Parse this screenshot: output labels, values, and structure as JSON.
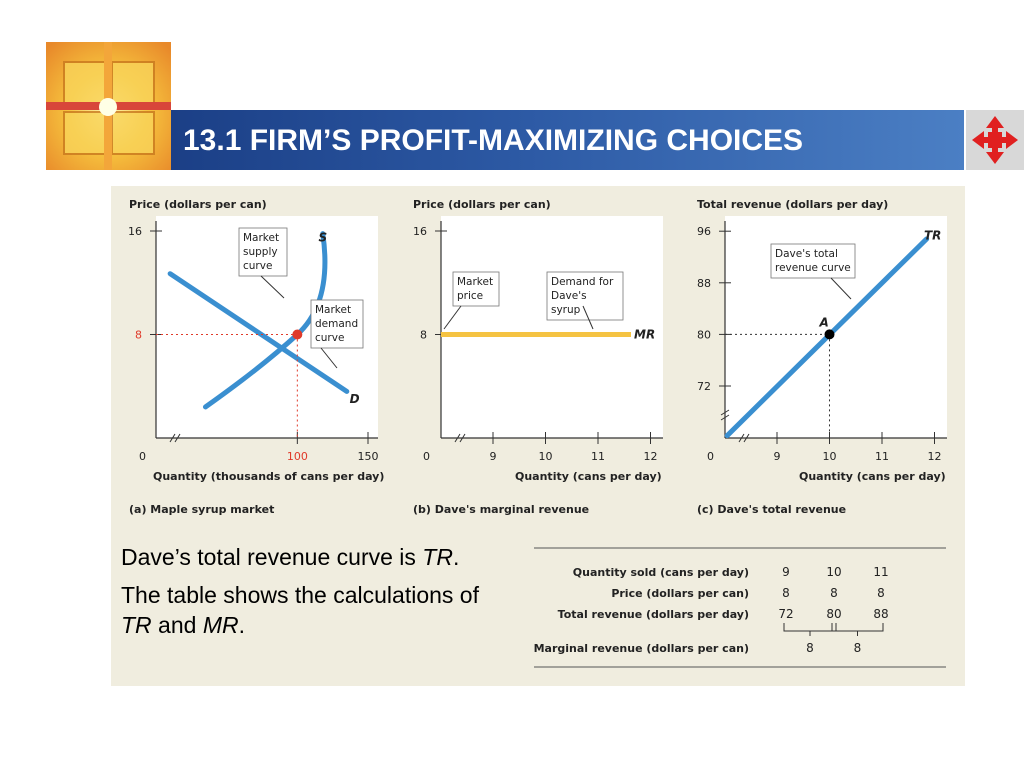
{
  "slide": {
    "title": "13.1 FIRM’S PROFIT-MAXIMIZING CHOICES",
    "notes": {
      "line1_text": "Dave’s total revenue curve is ",
      "line1_italic": "TR",
      "line1_end": ".",
      "line2_text": "The table shows the calculations of ",
      "line2_italic1": "TR",
      "line2_mid": " and ",
      "line2_italic2": "MR",
      "line2_end": "."
    }
  },
  "colors": {
    "curve": "#3a8fd0",
    "mr_line": "#f5c342",
    "red": "#e03a2a",
    "panel": "#f0eddf",
    "title_bar": "#2b579f"
  },
  "chart_data": [
    {
      "type": "line",
      "id": "a",
      "ylabel": "Price (dollars per can)",
      "xlabel": "Quantity (thousands of cans per day)",
      "caption": "(a)  Maple syrup market",
      "x_ticks": [
        "0",
        "100",
        "150"
      ],
      "y_ticks": [
        "8",
        "16"
      ],
      "xlim": [
        0,
        150
      ],
      "ylim": [
        0,
        16
      ],
      "series": [
        {
          "name": "S",
          "points": [
            [
              70,
              3
            ],
            [
              100,
              8
            ],
            [
              130,
              16
            ]
          ]
        },
        {
          "name": "D",
          "points": [
            [
              20,
              13
            ],
            [
              100,
              8
            ],
            [
              180,
              3
            ]
          ]
        }
      ],
      "equilibrium": {
        "x": 100,
        "y": 8
      },
      "annotations": [
        "Market supply curve",
        "Market demand curve"
      ]
    },
    {
      "type": "line",
      "id": "b",
      "ylabel": "Price (dollars per can)",
      "xlabel": "Quantity (cans per day)",
      "caption": "(b)  Dave's marginal revenue",
      "x_ticks": [
        "0",
        "9",
        "10",
        "11",
        "12"
      ],
      "y_ticks": [
        "8",
        "16"
      ],
      "xlim": [
        8,
        12
      ],
      "ylim": [
        0,
        16
      ],
      "series": [
        {
          "name": "MR",
          "points": [
            [
              8,
              8
            ],
            [
              12,
              8
            ]
          ]
        }
      ],
      "annotations": [
        "Market price",
        "Demand for Dave's syrup"
      ]
    },
    {
      "type": "line",
      "id": "c",
      "ylabel": "Total revenue (dollars per day)",
      "xlabel": "Quantity (cans per day)",
      "caption": "(c)  Dave's total revenue",
      "x_ticks": [
        "0",
        "9",
        "10",
        "11",
        "12"
      ],
      "y_ticks": [
        "72",
        "80",
        "88",
        "96"
      ],
      "xlim": [
        8,
        12
      ],
      "ylim": [
        64,
        96
      ],
      "series": [
        {
          "name": "TR",
          "points": [
            [
              8,
              64
            ],
            [
              12,
              96
            ]
          ]
        }
      ],
      "point": {
        "label": "A",
        "x": 10,
        "y": 80
      },
      "annotations": [
        "Dave's total revenue curve"
      ]
    },
    {
      "type": "table",
      "id": "table",
      "rows": [
        {
          "label": "Quantity sold (cans per day)",
          "values": [
            "9",
            "10",
            "11"
          ]
        },
        {
          "label": "Price (dollars per can)",
          "values": [
            "8",
            "8",
            "8"
          ]
        },
        {
          "label": "Total revenue (dollars per day)",
          "values": [
            "72",
            "80",
            "88"
          ]
        },
        {
          "label": "Marginal revenue (dollars per can)",
          "values": [
            "8",
            "8"
          ]
        }
      ]
    }
  ]
}
